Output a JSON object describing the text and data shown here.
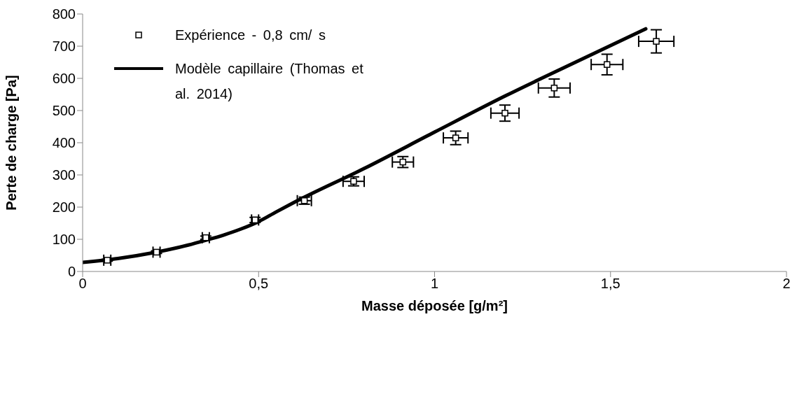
{
  "chart_data": {
    "type": "scatter",
    "xlabel": "Masse déposée [g/m²]",
    "ylabel": "Perte de charge [Pa]",
    "xlim": [
      0,
      2
    ],
    "xticks": [
      0,
      {
        "value": 0.5,
        "label": "0,5"
      },
      1,
      {
        "value": 1.5,
        "label": "1,5"
      },
      2
    ],
    "ylim": [
      0,
      800
    ],
    "yticks": [
      0,
      100,
      200,
      300,
      400,
      500,
      600,
      700,
      800
    ],
    "grid": false,
    "legend": "top left",
    "marker": "square",
    "series": [
      {
        "name": "Expérience - 0,8 cm/ s",
        "color": "#000000",
        "x": [
          0.07,
          0.21,
          0.35,
          0.49,
          0.63,
          0.77,
          0.91,
          1.06,
          1.2,
          1.34,
          1.49,
          1.63
        ],
        "values": [
          35,
          60,
          105,
          160,
          220,
          280,
          340,
          415,
          492,
          570,
          643,
          715
        ],
        "errors": [
          3,
          4,
          5,
          8,
          11,
          14,
          17,
          21,
          25,
          28,
          32,
          36
        ],
        "xerrors": [
          0.01,
          0.01,
          0.01,
          0.01,
          0.02,
          0.03,
          0.03,
          0.035,
          0.04,
          0.045,
          0.045,
          0.05
        ]
      },
      {
        "name": "Modèle capillaire (Thomas et al. 2014)",
        "type": "line",
        "color": "#000000",
        "marker": "none",
        "line_style": "solid",
        "x": [
          0,
          0.1,
          0.2,
          0.3,
          0.35,
          0.4,
          0.45,
          0.5,
          0.55,
          0.6,
          0.8,
          1.0,
          1.2,
          1.4,
          1.6
        ],
        "values": [
          28,
          40,
          58,
          82,
          97,
          113,
          132,
          155,
          185,
          214,
          320,
          433,
          545,
          650,
          754
        ]
      }
    ]
  }
}
